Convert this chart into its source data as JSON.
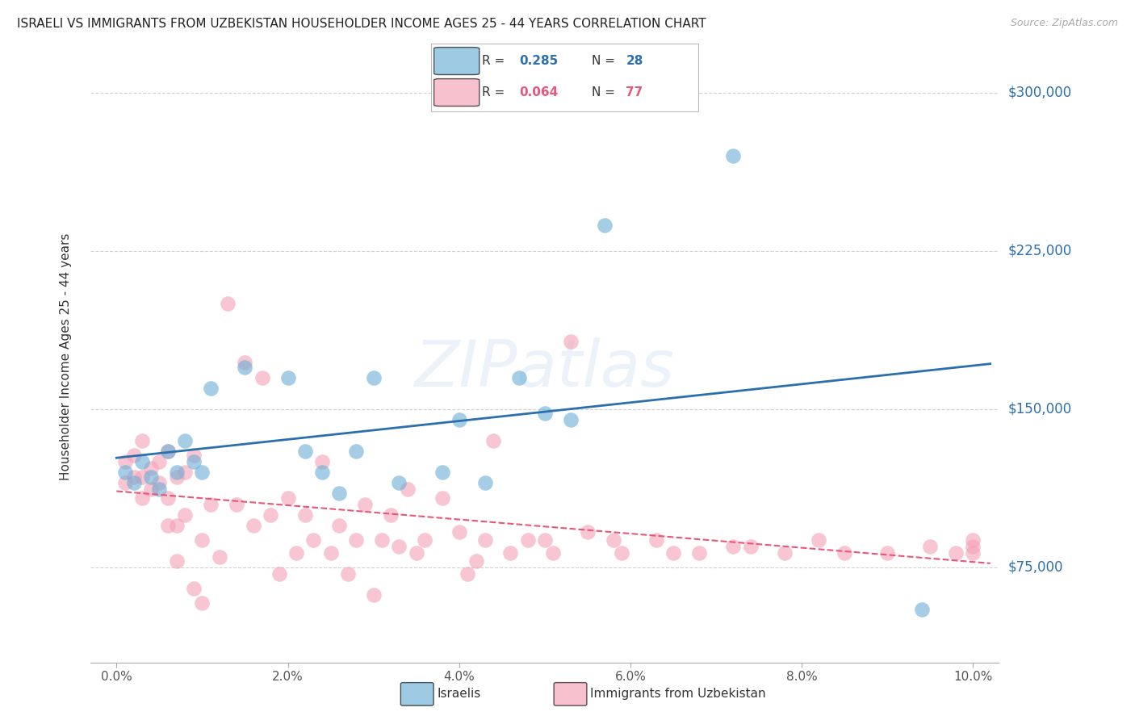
{
  "title": "ISRAELI VS IMMIGRANTS FROM UZBEKISTAN HOUSEHOLDER INCOME AGES 25 - 44 YEARS CORRELATION CHART",
  "source": "Source: ZipAtlas.com",
  "ylabel": "Householder Income Ages 25 - 44 years",
  "xlabel_ticks": [
    "0.0%",
    "2.0%",
    "4.0%",
    "6.0%",
    "8.0%",
    "10.0%"
  ],
  "xlabel_vals": [
    0.0,
    0.02,
    0.04,
    0.06,
    0.08,
    0.1
  ],
  "ytick_labels": [
    "$75,000",
    "$150,000",
    "$225,000",
    "$300,000"
  ],
  "ytick_vals": [
    75000,
    150000,
    225000,
    300000
  ],
  "watermark": "ZIPatlas",
  "legend_israeli_R": "0.285",
  "legend_israeli_N": "28",
  "legend_uzbek_R": "0.064",
  "legend_uzbek_N": "77",
  "legend_labels": [
    "Israelis",
    "Immigrants from Uzbekistan"
  ],
  "israeli_color": "#6aaed6",
  "uzbek_color": "#f4a0b5",
  "israeli_line_color": "#2c6fad",
  "uzbek_line_color": "#e8567a",
  "background_color": "#ffffff",
  "xlim": [
    -0.003,
    0.103
  ],
  "ylim": [
    30000,
    320000
  ],
  "israelis_x": [
    0.001,
    0.002,
    0.003,
    0.004,
    0.005,
    0.006,
    0.007,
    0.008,
    0.009,
    0.01,
    0.011,
    0.015,
    0.02,
    0.022,
    0.024,
    0.026,
    0.028,
    0.03,
    0.033,
    0.038,
    0.04,
    0.043,
    0.047,
    0.05,
    0.053,
    0.057,
    0.072,
    0.094
  ],
  "israelis_y": [
    120000,
    115000,
    125000,
    118000,
    112000,
    130000,
    120000,
    135000,
    125000,
    120000,
    160000,
    170000,
    165000,
    130000,
    120000,
    110000,
    130000,
    165000,
    115000,
    120000,
    145000,
    115000,
    165000,
    148000,
    145000,
    237000,
    270000,
    55000
  ],
  "uzbek_x": [
    0.001,
    0.001,
    0.002,
    0.002,
    0.003,
    0.003,
    0.003,
    0.004,
    0.004,
    0.005,
    0.005,
    0.006,
    0.006,
    0.006,
    0.007,
    0.007,
    0.007,
    0.008,
    0.008,
    0.009,
    0.009,
    0.01,
    0.01,
    0.011,
    0.012,
    0.013,
    0.014,
    0.015,
    0.016,
    0.017,
    0.018,
    0.019,
    0.02,
    0.021,
    0.022,
    0.023,
    0.024,
    0.025,
    0.026,
    0.027,
    0.028,
    0.029,
    0.03,
    0.031,
    0.032,
    0.033,
    0.034,
    0.035,
    0.036,
    0.038,
    0.04,
    0.041,
    0.042,
    0.043,
    0.044,
    0.046,
    0.048,
    0.05,
    0.051,
    0.053,
    0.055,
    0.058,
    0.059,
    0.063,
    0.065,
    0.068,
    0.072,
    0.074,
    0.078,
    0.082,
    0.085,
    0.09,
    0.095,
    0.098,
    0.1,
    0.1,
    0.1
  ],
  "uzbek_y": [
    125000,
    115000,
    128000,
    118000,
    135000,
    118000,
    108000,
    122000,
    112000,
    125000,
    115000,
    130000,
    108000,
    95000,
    118000,
    95000,
    78000,
    120000,
    100000,
    128000,
    65000,
    88000,
    58000,
    105000,
    80000,
    200000,
    105000,
    172000,
    95000,
    165000,
    100000,
    72000,
    108000,
    82000,
    100000,
    88000,
    125000,
    82000,
    95000,
    72000,
    88000,
    105000,
    62000,
    88000,
    100000,
    85000,
    112000,
    82000,
    88000,
    108000,
    92000,
    72000,
    78000,
    88000,
    135000,
    82000,
    88000,
    88000,
    82000,
    182000,
    92000,
    88000,
    82000,
    88000,
    82000,
    82000,
    85000,
    85000,
    82000,
    88000,
    82000,
    82000,
    85000,
    82000,
    85000,
    88000,
    82000
  ]
}
